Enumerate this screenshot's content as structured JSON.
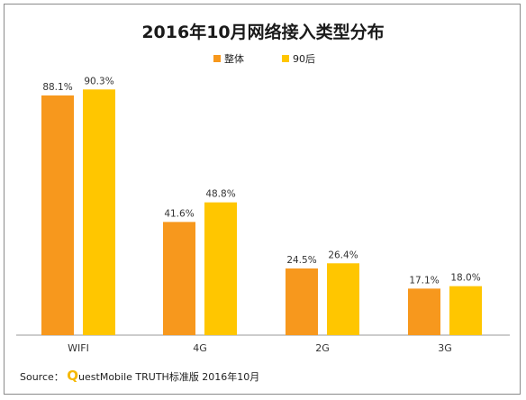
{
  "chart_data": {
    "type": "bar",
    "title": "2016年10月网络接入类型分布",
    "categories": [
      "WIFI",
      "4G",
      "2G",
      "3G"
    ],
    "series": [
      {
        "name": "整体",
        "color": "#F7981D",
        "values": [
          88.1,
          41.6,
          24.5,
          17.1
        ],
        "labels": [
          "88.1%",
          "41.6%",
          "24.5%",
          "17.1%"
        ]
      },
      {
        "name": "90后",
        "color": "#FFC600",
        "values": [
          90.3,
          48.8,
          26.4,
          18.0
        ],
        "labels": [
          "90.3%",
          "48.8%",
          "26.4%",
          "18.0%"
        ]
      }
    ],
    "ylim": [
      0,
      100
    ],
    "grid": false,
    "legend_position": "top-center"
  },
  "source": {
    "prefix": "Source：",
    "brand_initial": "Q",
    "text": "uestMobile TRUTH标准版 2016年10月"
  }
}
